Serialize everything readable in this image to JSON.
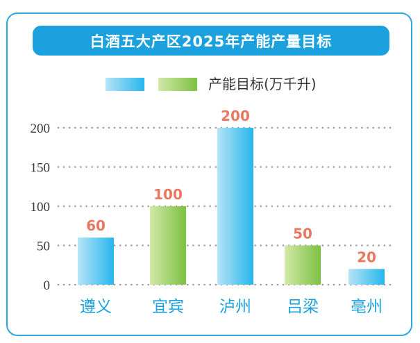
{
  "colors": {
    "frame": "#29a9e0",
    "title_bg": "#1ba1dd",
    "blue_light": "#b5e4f7",
    "blue_dark": "#26b6ec",
    "green_light": "#d2e8a8",
    "green_dark": "#7cc142",
    "data_label": "#ea7760",
    "category_label": "#1ba1dd",
    "grid": "#9a9a9a",
    "text": "#333333"
  },
  "chart_data": {
    "type": "bar",
    "title": "白酒五大产区2025年产能产量目标",
    "legend": [
      "",
      "产能目标(万千升)"
    ],
    "legend_placement": "top-center",
    "categories": [
      "遵义",
      "宜宾",
      "泸州",
      "吕梁",
      "亳州"
    ],
    "values": [
      60,
      100,
      200,
      50,
      20
    ],
    "data_labels": [
      "60",
      "100",
      "200",
      "50",
      "20"
    ],
    "bar_styles": [
      "blue",
      "green",
      "blue",
      "green",
      "blue"
    ],
    "yticks": [
      0,
      50,
      100,
      150,
      200
    ],
    "ylim": [
      0,
      200
    ],
    "grid": true,
    "xlabel": "",
    "ylabel": ""
  }
}
